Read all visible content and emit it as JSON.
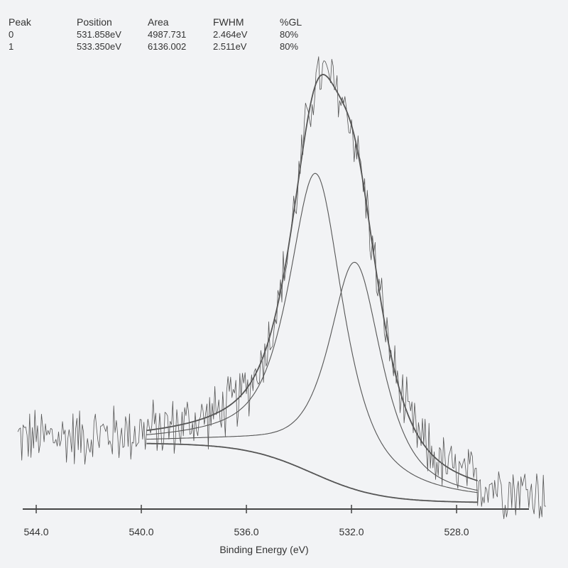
{
  "peak_table": {
    "headers": [
      "Peak",
      "Position",
      "Area",
      "FWHM",
      "%GL"
    ],
    "rows": [
      [
        "0",
        "531.858eV",
        "4987.731",
        "2.464eV",
        "80%"
      ],
      [
        "1",
        "533.350eV",
        "6136.002",
        "2.511eV",
        "80%"
      ]
    ]
  },
  "colors": {
    "line": "#555555",
    "background": "#f2f3f5"
  },
  "chart_data": {
    "type": "line",
    "title": "",
    "xlabel": "Binding Energy (eV)",
    "ylabel": "",
    "x_reversed": true,
    "xlim": [
      545.0,
      524.3
    ],
    "ylim": [
      0,
      100
    ],
    "x_ticks": [
      544.0,
      540.0,
      536.0,
      532.0,
      528.0
    ],
    "x_tick_labels": [
      "544.0",
      "540.0",
      "536.0",
      "532.0",
      "528.0"
    ],
    "grid": false,
    "raw_spectrum": {
      "x_range": [
        544.7,
        524.6
      ],
      "noise_amplitude": 4.5
    },
    "fit_range": [
      539.8,
      527.2
    ],
    "background": {
      "left_level": 22.0,
      "right_level": 11.5,
      "center": 533.5,
      "width": 1.3
    },
    "peaks": [
      {
        "peak": "0",
        "position": 531.858,
        "height": 40.0,
        "fwhm": 2.464,
        "gl": 0.8
      },
      {
        "peak": "1",
        "position": 533.35,
        "height": 53.0,
        "fwhm": 2.511,
        "gl": 0.8
      }
    ]
  }
}
